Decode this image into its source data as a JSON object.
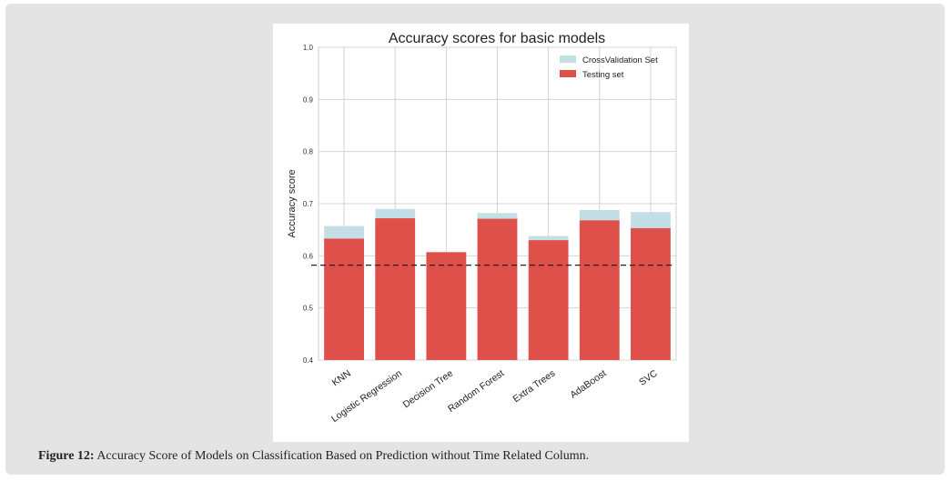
{
  "caption": {
    "label": "Figure 12:",
    "text": "Accuracy Score of Models on Classification Based on Prediction without Time Related Column."
  },
  "chart_data": {
    "type": "bar",
    "title": "Accuracy scores for basic models",
    "xlabel": "",
    "ylabel": "Accuracy score",
    "ylim": [
      0.4,
      1.0
    ],
    "yticks": [
      "0.4",
      "0.5",
      "0.6",
      "0.7",
      "0.8",
      "0.9",
      "1.0"
    ],
    "grid": true,
    "legend_position": "top-right",
    "categories": [
      "KNN",
      "Logistic Regression",
      "Decision Tree",
      "Random Forest",
      "Extra Trees",
      "AdaBoost",
      "SVC"
    ],
    "series": [
      {
        "name": "CrossValidation Set",
        "color": "#c3dfe6",
        "values": [
          0.657,
          0.69,
          0.605,
          0.682,
          0.638,
          0.688,
          0.684
        ]
      },
      {
        "name": "Testing set",
        "color": "#e0504a",
        "values": [
          0.633,
          0.672,
          0.607,
          0.671,
          0.63,
          0.668,
          0.653
        ]
      }
    ],
    "reference_line": {
      "value": 0.582,
      "style": "dashed",
      "color": "#222222"
    }
  }
}
